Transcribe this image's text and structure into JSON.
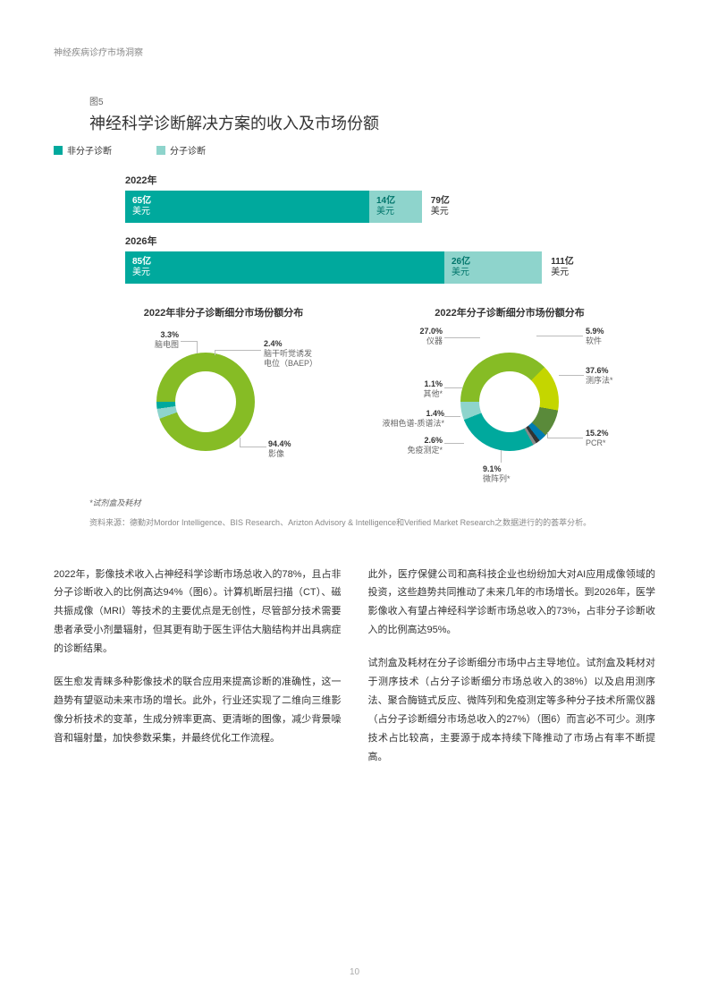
{
  "header": "神经疾病诊疗市场洞察",
  "figLabel": "图5",
  "chartTitle": "神经科学诊断解决方案的收入及市场份额",
  "legend": {
    "nonMolecular": {
      "label": "非分子诊断",
      "color": "#00a99d"
    },
    "molecular": {
      "label": "分子诊断",
      "color": "#8ed4cc"
    }
  },
  "bars": {
    "unit": "美元",
    "rows": [
      {
        "year": "2022年",
        "a_val": 65,
        "a_label": "65亿",
        "b_val": 14,
        "b_label": "14亿",
        "total": "79亿",
        "a_color": "#00a99d",
        "b_color": "#8ed4cc"
      },
      {
        "year": "2026年",
        "a_val": 85,
        "a_label": "85亿",
        "b_val": 26,
        "b_label": "26亿",
        "total": "111亿",
        "a_color": "#00a99d",
        "b_color": "#8ed4cc"
      }
    ],
    "pxPerUnit": 4.2
  },
  "donut1": {
    "title": "2022年非分子诊断细分市场份额分布",
    "r": 55,
    "inner": 34,
    "slices": [
      {
        "pct": 94.4,
        "color": "#86bc25",
        "label": "影像"
      },
      {
        "pct": 3.3,
        "color": "#8ed4cc",
        "label": "脑电图"
      },
      {
        "pct": 2.4,
        "color": "#00a99d",
        "label": "脑干听觉诱发\n电位（BAEP）"
      }
    ]
  },
  "donut2": {
    "title": "2022年分子诊断细分市场份额分布",
    "r": 55,
    "inner": 34,
    "slices": [
      {
        "pct": 37.6,
        "color": "#86bc25",
        "label": "测序法*"
      },
      {
        "pct": 15.2,
        "color": "#c4d600",
        "label": "PCR*"
      },
      {
        "pct": 9.1,
        "color": "#5a8a3a",
        "label": "微阵列*"
      },
      {
        "pct": 2.6,
        "color": "#007cb0",
        "label": "免疫测定*"
      },
      {
        "pct": 1.4,
        "color": "#333333",
        "label": "液相色谱-质谱法*"
      },
      {
        "pct": 1.1,
        "color": "#888888",
        "label": "其他*"
      },
      {
        "pct": 27.0,
        "color": "#00a99d",
        "label": "仪器"
      },
      {
        "pct": 5.9,
        "color": "#8ed4cc",
        "label": "软件"
      }
    ]
  },
  "footnote": "*试剂盒及耗材",
  "source": "资料来源：德勤对Mordor Intelligence、BIS Research、Arizton Advisory & Intelligence和Verified Market Research之数据进行的的荟萃分析。",
  "body": {
    "left": [
      "2022年，影像技术收入占神经科学诊断市场总收入的78%，且占非分子诊断收入的比例高达94%（图6）。计算机断层扫描（CT）、磁共振成像（MRI）等技术的主要优点是无创性，尽管部分技术需要患者承受小剂量辐射，但其更有助于医生评估大脑结构并出具病症的诊断结果。",
      "医生愈发青睐多种影像技术的联合应用来提高诊断的准确性，这一趋势有望驱动未来市场的增长。此外，行业还实现了二维向三维影像分析技术的变革，生成分辨率更高、更清晰的图像，减少背景噪音和辐射量，加快参数采集，并最终优化工作流程。"
    ],
    "right": [
      "此外，医疗保健公司和高科技企业也纷纷加大对AI应用成像领域的投资，这些趋势共同推动了未来几年的市场增长。到2026年，医学影像收入有望占神经科学诊断市场总收入的73%，占非分子诊断收入的比例高达95%。",
      "试剂盒及耗材在分子诊断细分市场中占主导地位。试剂盒及耗材对于测序技术（占分子诊断细分市场总收入的38%）以及启用测序法、聚合酶链式反应、微阵列和免疫测定等多种分子技术所需仪器（占分子诊断细分市场总收入的27%）（图6）而言必不可少。测序技术占比较高，主要源于成本持续下降推动了市场占有率不断提高。"
    ]
  },
  "pageNum": "10"
}
